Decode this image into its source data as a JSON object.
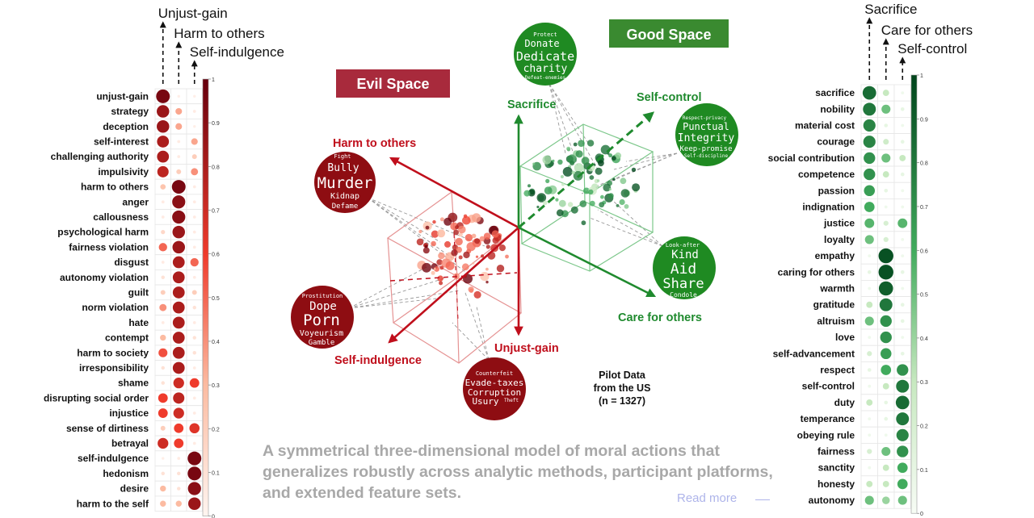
{
  "colors": {
    "evil": "#c00f1c",
    "good": "#1f8a2e",
    "evil_dark": "#8b0c12",
    "good_dark": "#1a7a22"
  },
  "left_panel": {
    "headers": [
      "Unjust-gain",
      "Harm to others",
      "Self-indulgence"
    ],
    "colorbar_ticks": [
      "1",
      "0.9",
      "0.8",
      "0.7",
      "0.6",
      "0.5",
      "0.4",
      "0.3",
      "0.2",
      "0.1",
      "0"
    ],
    "rows": [
      {
        "label": "unjust-gain",
        "v": [
          0.95,
          0.03,
          0.03
        ]
      },
      {
        "label": "strategy",
        "v": [
          0.85,
          0.35,
          0.05
        ]
      },
      {
        "label": "deception",
        "v": [
          0.85,
          0.35,
          0.03
        ]
      },
      {
        "label": "self-interest",
        "v": [
          0.8,
          0.05,
          0.35
        ]
      },
      {
        "label": "challenging authority",
        "v": [
          0.8,
          0.05,
          0.2
        ]
      },
      {
        "label": "impulsivity",
        "v": [
          0.75,
          0.2,
          0.4
        ]
      },
      {
        "label": "harm to others",
        "v": [
          0.25,
          0.95,
          0.05
        ]
      },
      {
        "label": "anger",
        "v": [
          0.05,
          0.9,
          0.05
        ]
      },
      {
        "label": "callousness",
        "v": [
          0.05,
          0.9,
          0.05
        ]
      },
      {
        "label": "psychological harm",
        "v": [
          0.15,
          0.85,
          0.05
        ]
      },
      {
        "label": "fairness violation",
        "v": [
          0.5,
          0.85,
          0.05
        ]
      },
      {
        "label": "disgust",
        "v": [
          0.05,
          0.8,
          0.5
        ]
      },
      {
        "label": "autonomy violation",
        "v": [
          0.1,
          0.8,
          0.05
        ]
      },
      {
        "label": "guilt",
        "v": [
          0.2,
          0.8,
          0.2
        ]
      },
      {
        "label": "norm violation",
        "v": [
          0.4,
          0.8,
          0.1
        ]
      },
      {
        "label": "hate",
        "v": [
          0.05,
          0.8,
          0.05
        ]
      },
      {
        "label": "contempt",
        "v": [
          0.3,
          0.8,
          0.1
        ]
      },
      {
        "label": "harm to society",
        "v": [
          0.55,
          0.8,
          0.1
        ]
      },
      {
        "label": "irresponsibility",
        "v": [
          0.1,
          0.8,
          0.05
        ]
      },
      {
        "label": "shame",
        "v": [
          0.1,
          0.7,
          0.6
        ]
      },
      {
        "label": "disrupting social order",
        "v": [
          0.6,
          0.75,
          0.05
        ]
      },
      {
        "label": "injustice",
        "v": [
          0.6,
          0.7,
          0.05
        ]
      },
      {
        "label": "sense of dirtiness",
        "v": [
          0.2,
          0.6,
          0.65
        ]
      },
      {
        "label": "betrayal",
        "v": [
          0.7,
          0.6,
          0.05
        ]
      },
      {
        "label": "self-indulgence",
        "v": [
          0.03,
          0.05,
          0.95
        ]
      },
      {
        "label": "hedonism",
        "v": [
          0.1,
          0.1,
          0.95
        ]
      },
      {
        "label": "desire",
        "v": [
          0.3,
          0.1,
          0.9
        ]
      },
      {
        "label": "harm to the self",
        "v": [
          0.3,
          0.3,
          0.85
        ]
      }
    ]
  },
  "right_panel": {
    "headers": [
      "Sacrifice",
      "Care for others",
      "Self-control"
    ],
    "colorbar_ticks": [
      "1",
      "0.9",
      "0.8",
      "0.7",
      "0.6",
      "0.5",
      "0.4",
      "0.3",
      "0.2",
      "0.1",
      "0"
    ],
    "rows": [
      {
        "label": "sacrifice",
        "v": [
          0.85,
          0.3,
          0.05
        ]
      },
      {
        "label": "nobility",
        "v": [
          0.8,
          0.5,
          0.1
        ]
      },
      {
        "label": "material cost",
        "v": [
          0.75,
          0.1,
          0.05
        ]
      },
      {
        "label": "courage",
        "v": [
          0.75,
          0.25,
          0.1
        ]
      },
      {
        "label": "social contribution",
        "v": [
          0.7,
          0.5,
          0.3
        ]
      },
      {
        "label": "competence",
        "v": [
          0.7,
          0.3,
          0.1
        ]
      },
      {
        "label": "passion",
        "v": [
          0.65,
          0.1,
          0.05
        ]
      },
      {
        "label": "indignation",
        "v": [
          0.6,
          0.05,
          0.05
        ]
      },
      {
        "label": "justice",
        "v": [
          0.55,
          0.2,
          0.55
        ]
      },
      {
        "label": "loyalty",
        "v": [
          0.5,
          0.2,
          0.05
        ]
      },
      {
        "label": "empathy",
        "v": [
          0.05,
          0.95,
          0.05
        ]
      },
      {
        "label": "caring for others",
        "v": [
          0.1,
          0.95,
          0.1
        ]
      },
      {
        "label": "warmth",
        "v": [
          0.05,
          0.9,
          0.05
        ]
      },
      {
        "label": "gratitude",
        "v": [
          0.3,
          0.8,
          0.1
        ]
      },
      {
        "label": "altruism",
        "v": [
          0.5,
          0.7,
          0.1
        ]
      },
      {
        "label": "love",
        "v": [
          0.05,
          0.7,
          0.05
        ]
      },
      {
        "label": "self-advancement",
        "v": [
          0.2,
          0.65,
          0.1
        ]
      },
      {
        "label": "respect",
        "v": [
          0.1,
          0.6,
          0.7
        ]
      },
      {
        "label": "self-control",
        "v": [
          0.05,
          0.3,
          0.8
        ]
      },
      {
        "label": "duty",
        "v": [
          0.3,
          0.1,
          0.85
        ]
      },
      {
        "label": "temperance",
        "v": [
          0.05,
          0.1,
          0.8
        ]
      },
      {
        "label": "obeying rule",
        "v": [
          0.05,
          0.05,
          0.75
        ]
      },
      {
        "label": "fairness",
        "v": [
          0.2,
          0.5,
          0.7
        ]
      },
      {
        "label": "sanctity",
        "v": [
          0.05,
          0.3,
          0.6
        ]
      },
      {
        "label": "honesty",
        "v": [
          0.3,
          0.3,
          0.6
        ]
      },
      {
        "label": "autonomy",
        "v": [
          0.5,
          0.4,
          0.5
        ]
      }
    ]
  },
  "diagram": {
    "evil_space_label": "Evil Space",
    "good_space_label": "Good Space",
    "axes": {
      "harm_to_others": "Harm to others",
      "self_indulgence": "Self-indulgence",
      "unjust_gain": "Unjust-gain",
      "sacrifice": "Sacrifice",
      "self_control": "Self-control",
      "care_for_others": "Care for others"
    },
    "clouds": {
      "harm": [
        "Fight",
        "Bully",
        "Murder",
        "Kidnap",
        "Defame"
      ],
      "indulgence": [
        "Prostitution",
        "Dope",
        "Porn",
        "Voyeurism",
        "Gamble"
      ],
      "unjust": [
        "Counterfeit",
        "Evade-taxes",
        "Corruption",
        "Usury",
        "Theft"
      ],
      "sacrifice": [
        "Protect",
        "Donate",
        "Dedicate",
        "charity",
        "Defeat-enemies"
      ],
      "selfcontrol": [
        "Respect-privacy",
        "Punctual",
        "Integrity",
        "Keep-promise",
        "Self-discipline"
      ],
      "care": [
        "Look-after",
        "Kind",
        "Aid",
        "Share",
        "Condole"
      ]
    },
    "pilot_line1": "Pilot Data",
    "pilot_line2": "from the US",
    "pilot_n": "(n = 1327)"
  },
  "caption": "A symmetrical three-dimensional model of moral actions that generalizes robustly across analytic methods, participant platforms, and extended feature sets.",
  "read_more": "Read more"
}
